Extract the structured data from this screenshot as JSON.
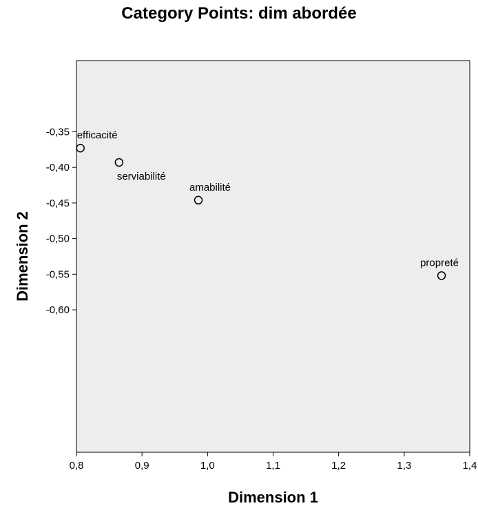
{
  "chart_data": {
    "type": "scatter",
    "title": "Category Points: dim abordée",
    "xlabel": "Dimension 1",
    "ylabel": "Dimension 2",
    "xlim": [
      0.8,
      1.4
    ],
    "ylim": [
      -0.8,
      -0.25
    ],
    "xticks": [
      "0,8",
      "0,9",
      "1,0",
      "1,1",
      "1,2",
      "1,3",
      "1,4"
    ],
    "yticks": [
      "-0,35",
      "-0,40",
      "-0,45",
      "-0,50",
      "-0,55",
      "-0,60"
    ],
    "grid": false,
    "background_color": "#ededed",
    "points": [
      {
        "label": "efficacité",
        "x": 0.806,
        "y": -0.373
      },
      {
        "label": "serviabilité",
        "x": 0.865,
        "y": -0.393
      },
      {
        "label": "amabilité",
        "x": 0.986,
        "y": -0.446
      },
      {
        "label": "propreté",
        "x": 1.357,
        "y": -0.552
      }
    ]
  }
}
